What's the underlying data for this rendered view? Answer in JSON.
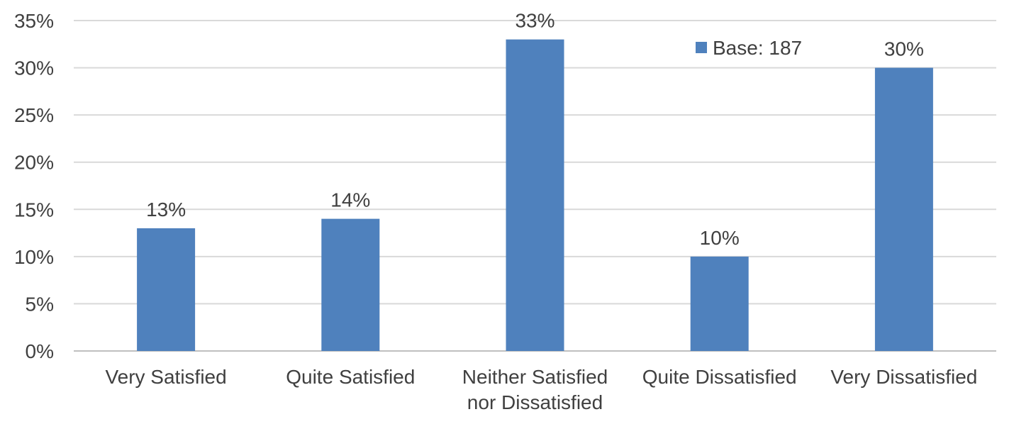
{
  "chart_data": {
    "type": "bar",
    "categories": [
      [
        "Very Satisfied"
      ],
      [
        "Quite Satisfied"
      ],
      [
        "Neither Satisfied",
        "nor Dissatisfied"
      ],
      [
        "Quite Dissatisfied"
      ],
      [
        "Very Dissatisfied"
      ]
    ],
    "series": [
      {
        "name": "Base: 187",
        "values": [
          13,
          14,
          33,
          10,
          30
        ],
        "color": "#4F81BD"
      }
    ],
    "data_labels": [
      "13%",
      "14%",
      "33%",
      "10%",
      "30%"
    ],
    "ylim": [
      0,
      35
    ],
    "yticks": [
      0,
      5,
      10,
      15,
      20,
      25,
      30,
      35
    ],
    "ytick_labels": [
      "0%",
      "5%",
      "10%",
      "15%",
      "20%",
      "25%",
      "30%",
      "35%"
    ],
    "grid": true,
    "legend_position": "top-right",
    "colors": {
      "bar": "#4F81BD",
      "grid": "#d9d9d9",
      "axis": "#bfbfbf",
      "text": "#404040"
    }
  }
}
